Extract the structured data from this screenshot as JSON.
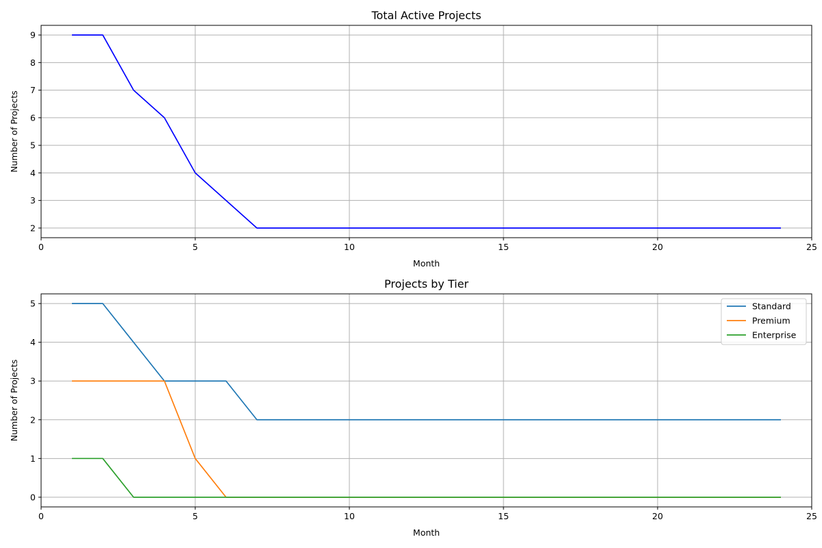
{
  "chart_data": [
    {
      "type": "line",
      "title": "Total Active Projects",
      "xlabel": "Month",
      "ylabel": "Number of Projects",
      "xlim": [
        0,
        25
      ],
      "ylim": [
        1.65,
        9.35
      ],
      "xticks": [
        0,
        5,
        10,
        15,
        20,
        25
      ],
      "yticks": [
        2,
        3,
        4,
        5,
        6,
        7,
        8,
        9
      ],
      "grid": true,
      "legend": null,
      "x": [
        1,
        2,
        3,
        4,
        5,
        6,
        7,
        8,
        9,
        10,
        11,
        12,
        13,
        14,
        15,
        16,
        17,
        18,
        19,
        20,
        21,
        22,
        23,
        24
      ],
      "series": [
        {
          "color": "#0000ff",
          "values": [
            9,
            9,
            7,
            6,
            4,
            3,
            2,
            2,
            2,
            2,
            2,
            2,
            2,
            2,
            2,
            2,
            2,
            2,
            2,
            2,
            2,
            2,
            2,
            2
          ]
        }
      ]
    },
    {
      "type": "line",
      "title": "Projects by Tier",
      "xlabel": "Month",
      "ylabel": "Number of Projects",
      "xlim": [
        0,
        25
      ],
      "ylim": [
        -0.25,
        5.25
      ],
      "xticks": [
        0,
        5,
        10,
        15,
        20,
        25
      ],
      "yticks": [
        0,
        1,
        2,
        3,
        4,
        5
      ],
      "grid": true,
      "legend": "top-right",
      "x": [
        1,
        2,
        3,
        4,
        5,
        6,
        7,
        8,
        9,
        10,
        11,
        12,
        13,
        14,
        15,
        16,
        17,
        18,
        19,
        20,
        21,
        22,
        23,
        24
      ],
      "series": [
        {
          "name": "Standard",
          "color": "#1f77b4",
          "values": [
            5,
            5,
            4,
            3,
            3,
            3,
            2,
            2,
            2,
            2,
            2,
            2,
            2,
            2,
            2,
            2,
            2,
            2,
            2,
            2,
            2,
            2,
            2,
            2
          ]
        },
        {
          "name": "Premium",
          "color": "#ff7f0e",
          "values": [
            3,
            3,
            3,
            3,
            1,
            0,
            0,
            0,
            0,
            0,
            0,
            0,
            0,
            0,
            0,
            0,
            0,
            0,
            0,
            0,
            0,
            0,
            0,
            0
          ]
        },
        {
          "name": "Enterprise",
          "color": "#2ca02c",
          "values": [
            1,
            1,
            0,
            0,
            0,
            0,
            0,
            0,
            0,
            0,
            0,
            0,
            0,
            0,
            0,
            0,
            0,
            0,
            0,
            0,
            0,
            0,
            0,
            0
          ]
        }
      ]
    }
  ]
}
